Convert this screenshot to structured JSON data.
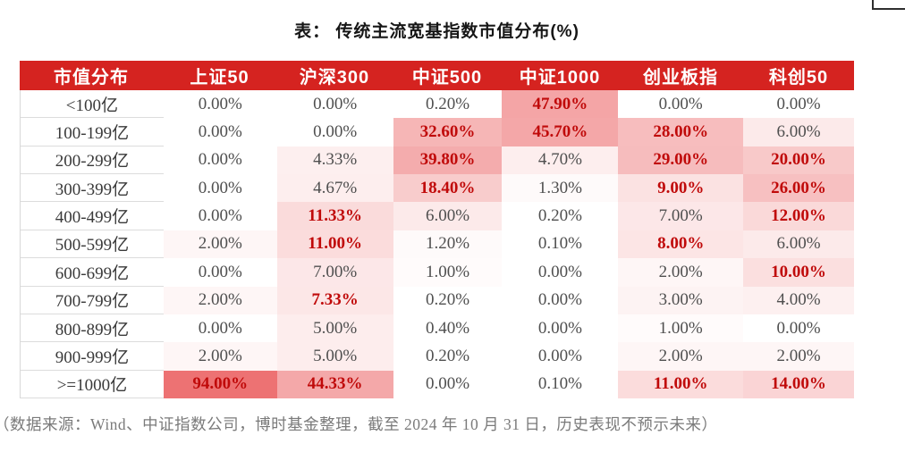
{
  "title": "表：  传统主流宽基指数市值分布(%)",
  "footer": "（数据来源：Wind、中证指数公司，博时基金整理，截至 2024 年 10 月 31 日，历史表现不预示未来）",
  "colors": {
    "header_bg": "#d52320",
    "hot_text": "#c00a0a",
    "normal_text": "#4f4f4f",
    "heat_base_rgb": [
      232,
      74,
      76
    ],
    "label_divider": "#dcdcdc"
  },
  "chart_data": {
    "type": "table",
    "title": "传统主流宽基指数市值分布(%)",
    "columns": [
      "市值分布",
      "上证50",
      "沪深300",
      "中证500",
      "中证1000",
      "创业板指",
      "科创50"
    ],
    "rows": [
      {
        "label": "<100亿",
        "values": [
          0.0,
          0.0,
          0.2,
          47.9,
          0.0,
          0.0
        ]
      },
      {
        "label": "100-199亿",
        "values": [
          0.0,
          0.0,
          32.6,
          45.7,
          28.0,
          6.0
        ]
      },
      {
        "label": "200-299亿",
        "values": [
          0.0,
          4.33,
          39.8,
          4.7,
          29.0,
          20.0
        ]
      },
      {
        "label": "300-399亿",
        "values": [
          0.0,
          4.67,
          18.4,
          1.3,
          9.0,
          26.0
        ]
      },
      {
        "label": "400-499亿",
        "values": [
          0.0,
          11.33,
          6.0,
          0.2,
          7.0,
          12.0
        ]
      },
      {
        "label": "500-599亿",
        "values": [
          2.0,
          11.0,
          1.2,
          0.1,
          8.0,
          6.0
        ]
      },
      {
        "label": "600-699亿",
        "values": [
          0.0,
          7.0,
          1.0,
          0.0,
          2.0,
          10.0
        ]
      },
      {
        "label": "700-799亿",
        "values": [
          2.0,
          7.33,
          0.2,
          0.0,
          3.0,
          4.0
        ]
      },
      {
        "label": "800-899亿",
        "values": [
          0.0,
          5.0,
          0.4,
          0.0,
          1.0,
          0.0
        ]
      },
      {
        "label": "900-999亿",
        "values": [
          2.0,
          5.0,
          0.2,
          0.0,
          2.0,
          2.0
        ]
      },
      {
        "label": ">=1000亿",
        "values": [
          94.0,
          44.33,
          0.0,
          0.1,
          11.0,
          14.0
        ]
      }
    ],
    "value_format": "two_decimals_percent",
    "conditional_format": "red bold text when value > 7; pink background intensity increases with value"
  }
}
